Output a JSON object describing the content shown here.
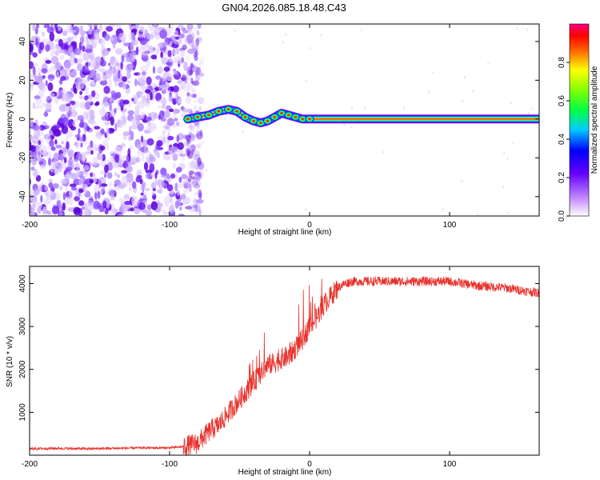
{
  "title": "GN04.2026.085.18.48.C43",
  "chart_data": [
    {
      "type": "heatmap",
      "name": "spectrogram",
      "xlabel": "Height of straight line (km)",
      "ylabel": "Frequency (Hz)",
      "xlim": [
        -200,
        164
      ],
      "ylim": [
        -50,
        49
      ],
      "xticks": [
        -200,
        -100,
        0,
        100
      ],
      "yticks": [
        -40,
        -20,
        0,
        20,
        40
      ],
      "colorbar": {
        "label": "Normalized spectral amplitude",
        "range": [
          0,
          1
        ],
        "ticks": [
          "0.0",
          "0.2",
          "0.4",
          "0.6",
          "0.8"
        ]
      },
      "noise_region_x": [
        -200,
        -86
      ],
      "signal_track": {
        "x": [
          -87,
          -80,
          -72,
          -65,
          -58,
          -52,
          -46,
          -40,
          -35,
          -30,
          -25,
          -20,
          -15,
          -10,
          -5,
          0,
          20,
          50,
          80,
          100,
          130,
          164
        ],
        "frequency": [
          0,
          1,
          2,
          4,
          5,
          4,
          1,
          -1,
          -2,
          -1,
          1,
          3,
          2,
          1,
          0,
          0,
          0,
          0,
          0,
          0,
          0,
          0
        ]
      }
    },
    {
      "type": "line",
      "name": "snr",
      "xlabel": "Height of straight line (km)",
      "ylabel": "SNR (10 * v/v)",
      "xlim": [
        -200,
        164
      ],
      "ylim": [
        0,
        4400
      ],
      "xticks": [
        -200,
        -100,
        0,
        100
      ],
      "yticks": [
        1000,
        2000,
        3000,
        4000
      ],
      "series": [
        {
          "name": "SNR",
          "color": "#e8312b",
          "x": [
            -200,
            -180,
            -160,
            -140,
            -120,
            -100,
            -90,
            -80,
            -75,
            -70,
            -65,
            -60,
            -55,
            -50,
            -45,
            -40,
            -35,
            -30,
            -25,
            -20,
            -15,
            -10,
            -5,
            0,
            5,
            10,
            15,
            20,
            25,
            30,
            40,
            60,
            80,
            100,
            120,
            140,
            164
          ],
          "y": [
            150,
            160,
            150,
            160,
            170,
            170,
            200,
            280,
            450,
            600,
            700,
            900,
            1100,
            1300,
            1500,
            1700,
            1900,
            2100,
            2150,
            2250,
            2300,
            2500,
            2700,
            3000,
            3200,
            3500,
            3700,
            3900,
            4000,
            4050,
            4050,
            4050,
            4050,
            4050,
            3950,
            3900,
            3780
          ]
        }
      ]
    }
  ]
}
